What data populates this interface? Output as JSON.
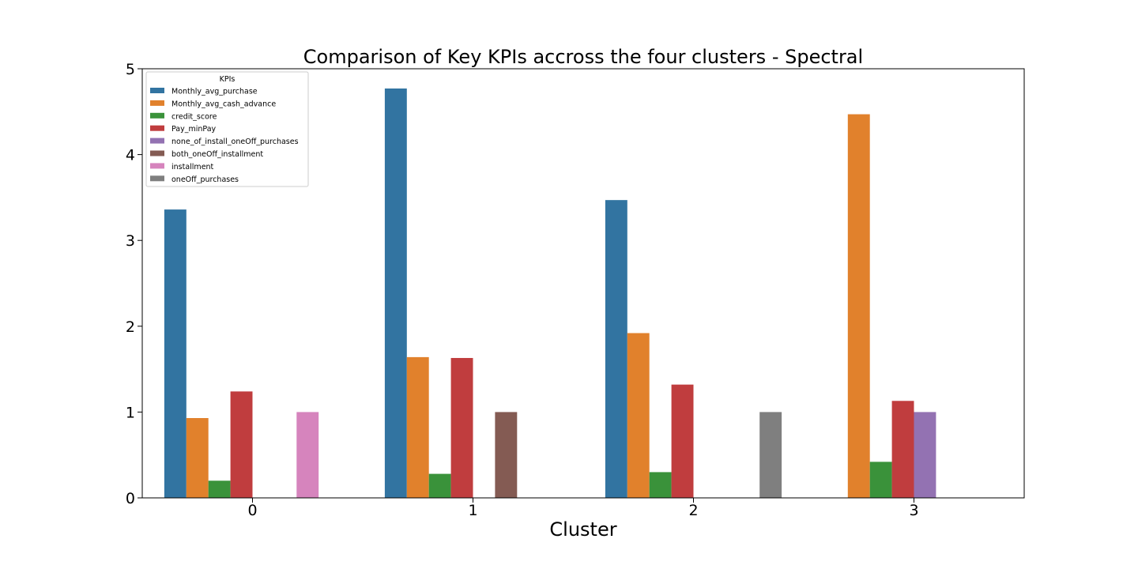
{
  "chart_data": {
    "type": "bar",
    "title": "Comparison of Key KPIs accross the four clusters - Spectral",
    "xlabel": "Cluster",
    "ylabel": "",
    "ylim": [
      0,
      5
    ],
    "yticks": [
      "0",
      "1",
      "2",
      "3",
      "4",
      "5"
    ],
    "categories": [
      "0",
      "1",
      "2",
      "3"
    ],
    "grid": false,
    "legend": {
      "title": "KPIs",
      "placement": "top-left"
    },
    "series": [
      {
        "name": "Monthly_avg_purchase",
        "color": "#3274a1",
        "values": [
          3.36,
          4.77,
          3.47,
          0
        ]
      },
      {
        "name": "Monthly_avg_cash_advance",
        "color": "#e1812c",
        "values": [
          0.93,
          1.64,
          1.92,
          4.47
        ]
      },
      {
        "name": "credit_score",
        "color": "#3a923a",
        "values": [
          0.2,
          0.28,
          0.3,
          0.42
        ]
      },
      {
        "name": "Pay_minPay",
        "color": "#c03d3e",
        "values": [
          1.24,
          1.63,
          1.32,
          1.13
        ]
      },
      {
        "name": "none_of_install_oneOff_purchases",
        "color": "#9372b2",
        "values": [
          0,
          0,
          0,
          1
        ]
      },
      {
        "name": "both_oneOff_installment",
        "color": "#845b53",
        "values": [
          0,
          1,
          0,
          0
        ]
      },
      {
        "name": "installment",
        "color": "#d684bd",
        "values": [
          1,
          0,
          0,
          0
        ]
      },
      {
        "name": "oneOff_purchases",
        "color": "#7f7f7f",
        "values": [
          0,
          0,
          1,
          0
        ]
      }
    ]
  }
}
